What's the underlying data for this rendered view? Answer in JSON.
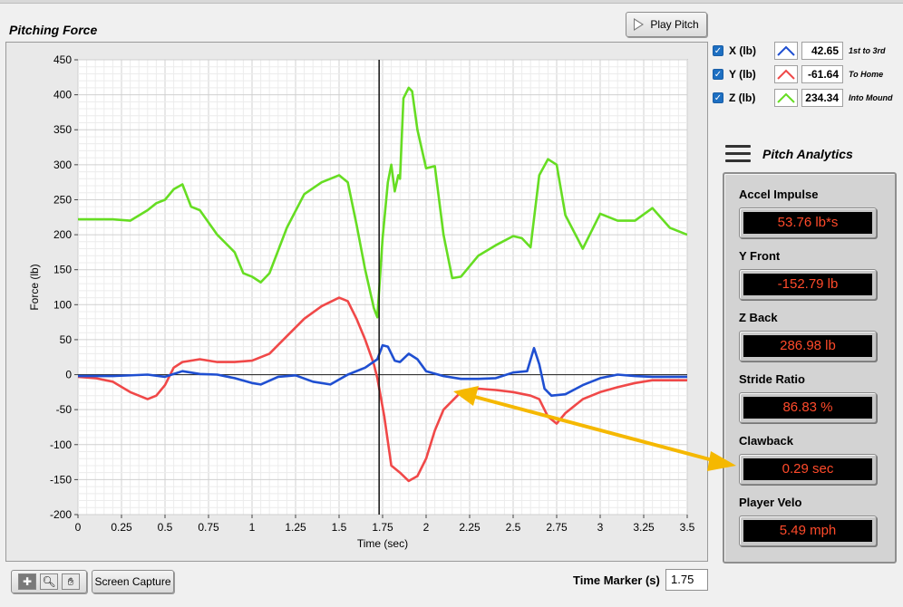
{
  "panel_title": "Pitching Force",
  "play_button_label": "Play Pitch",
  "legend": [
    {
      "label": "X (lb)",
      "value": "42.65",
      "direction": "1st to 3rd",
      "color": "#1f4fd1",
      "checked": true
    },
    {
      "label": "Y (lb)",
      "value": "-61.64",
      "direction": "To Home",
      "color": "#f04848",
      "checked": true
    },
    {
      "label": "Z (lb)",
      "value": "234.34",
      "direction": "Into Mound",
      "color": "#66dd22",
      "checked": true
    }
  ],
  "analytics": {
    "title": "Pitch Analytics",
    "metrics": [
      {
        "label": "Accel Impulse",
        "value": "53.76  lb*s"
      },
      {
        "label": "Y Front",
        "value": "-152.79  lb"
      },
      {
        "label": "Z Back",
        "value": "286.98  lb"
      },
      {
        "label": "Stride Ratio",
        "value": "86.83  %"
      },
      {
        "label": "Clawback",
        "value": "0.29  sec"
      },
      {
        "label": "Player Velo",
        "value": "5.49  mph"
      }
    ]
  },
  "toolbar": {
    "icons": [
      "crosshair-icon",
      "zoom-icon",
      "pan-hand-icon"
    ],
    "screen_capture_label": "Screen Capture"
  },
  "time_marker": {
    "label": "Time Marker (s)",
    "value": "1.75"
  },
  "chart_data": {
    "type": "line",
    "xlabel": "Time (sec)",
    "ylabel": "Force (lb)",
    "xlim": [
      0,
      3.5
    ],
    "ylim": [
      -200,
      450
    ],
    "xticks": [
      "0",
      "0.25",
      "0.5",
      "0.75",
      "1",
      "1.25",
      "1.5",
      "1.75",
      "2",
      "2.25",
      "2.5",
      "2.75",
      "3",
      "3.25",
      "3.5"
    ],
    "yticks": [
      "450",
      "400",
      "350",
      "300",
      "250",
      "200",
      "150",
      "100",
      "50",
      "0",
      "-50",
      "-100",
      "-150",
      "-200"
    ],
    "grid": true,
    "marker_x": 1.73,
    "series": [
      {
        "name": "X (lb)",
        "color": "#1f4fd1",
        "x": [
          0,
          0.2,
          0.4,
          0.5,
          0.6,
          0.7,
          0.8,
          0.9,
          1.0,
          1.05,
          1.15,
          1.25,
          1.35,
          1.45,
          1.55,
          1.65,
          1.72,
          1.75,
          1.78,
          1.82,
          1.85,
          1.9,
          1.95,
          2.0,
          2.1,
          2.2,
          2.3,
          2.4,
          2.5,
          2.58,
          2.62,
          2.65,
          2.68,
          2.72,
          2.8,
          2.9,
          3.0,
          3.1,
          3.2,
          3.3,
          3.5
        ],
        "y": [
          -2,
          -2,
          0,
          -3,
          5,
          1,
          0,
          -5,
          -12,
          -14,
          -3,
          -1,
          -10,
          -14,
          0,
          10,
          22,
          42,
          40,
          20,
          18,
          30,
          22,
          5,
          -2,
          -6,
          -6,
          -5,
          3,
          5,
          38,
          15,
          -20,
          -30,
          -28,
          -15,
          -5,
          0,
          -2,
          -3,
          -3
        ]
      },
      {
        "name": "Y (lb)",
        "color": "#f04848",
        "x": [
          0,
          0.1,
          0.2,
          0.3,
          0.4,
          0.45,
          0.5,
          0.55,
          0.6,
          0.7,
          0.8,
          0.9,
          1.0,
          1.1,
          1.2,
          1.3,
          1.4,
          1.5,
          1.55,
          1.6,
          1.65,
          1.7,
          1.72,
          1.76,
          1.8,
          1.85,
          1.9,
          1.95,
          2.0,
          2.05,
          2.1,
          2.2,
          2.3,
          2.4,
          2.5,
          2.6,
          2.65,
          2.7,
          2.75,
          2.8,
          2.9,
          3.0,
          3.1,
          3.2,
          3.3,
          3.4,
          3.5
        ],
        "y": [
          -3,
          -5,
          -10,
          -25,
          -35,
          -30,
          -15,
          10,
          18,
          22,
          18,
          18,
          20,
          30,
          55,
          80,
          98,
          110,
          105,
          80,
          50,
          15,
          -5,
          -60,
          -130,
          -140,
          -152,
          -145,
          -120,
          -80,
          -50,
          -25,
          -20,
          -22,
          -25,
          -30,
          -35,
          -60,
          -70,
          -55,
          -35,
          -25,
          -18,
          -12,
          -8,
          -8,
          -8
        ]
      },
      {
        "name": "Z (lb)",
        "color": "#66dd22",
        "x": [
          0,
          0.1,
          0.2,
          0.3,
          0.4,
          0.45,
          0.5,
          0.55,
          0.6,
          0.65,
          0.7,
          0.8,
          0.9,
          0.95,
          1.0,
          1.05,
          1.1,
          1.2,
          1.3,
          1.4,
          1.5,
          1.55,
          1.6,
          1.65,
          1.7,
          1.72,
          1.75,
          1.78,
          1.8,
          1.82,
          1.84,
          1.85,
          1.87,
          1.9,
          1.92,
          1.95,
          2.0,
          2.05,
          2.1,
          2.15,
          2.2,
          2.3,
          2.4,
          2.5,
          2.55,
          2.6,
          2.65,
          2.7,
          2.75,
          2.8,
          2.9,
          3.0,
          3.1,
          3.2,
          3.3,
          3.4,
          3.5
        ],
        "y": [
          222,
          222,
          222,
          220,
          235,
          245,
          250,
          265,
          272,
          240,
          235,
          200,
          175,
          145,
          140,
          132,
          145,
          210,
          258,
          275,
          285,
          275,
          215,
          150,
          95,
          82,
          195,
          275,
          300,
          262,
          285,
          280,
          395,
          410,
          405,
          350,
          295,
          298,
          200,
          138,
          140,
          170,
          185,
          198,
          195,
          182,
          285,
          308,
          300,
          228,
          180,
          230,
          220,
          220,
          238,
          210,
          200
        ]
      }
    ]
  }
}
